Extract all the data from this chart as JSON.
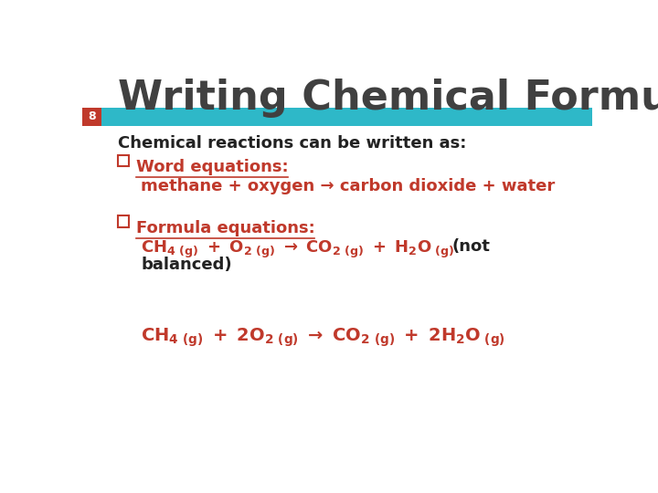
{
  "title": "Writing Chemical Formulas",
  "slide_number": "8",
  "background_color": "#ffffff",
  "title_color": "#404040",
  "title_fontsize": 32,
  "bar_color_red": "#c0392b",
  "bar_color_teal": "#2eb8c8",
  "red_square_color": "#c0392b",
  "black_text_color": "#222222",
  "red_text_color": "#c0392b",
  "line1": "Chemical reactions can be written as:",
  "bullet1_label": "Word equations:",
  "bullet1_text": "methane + oxygen → carbon dioxide + water",
  "bullet2_label": "Formula equations:",
  "bullet2_not": "(not",
  "bullet2_balanced": "balanced)"
}
